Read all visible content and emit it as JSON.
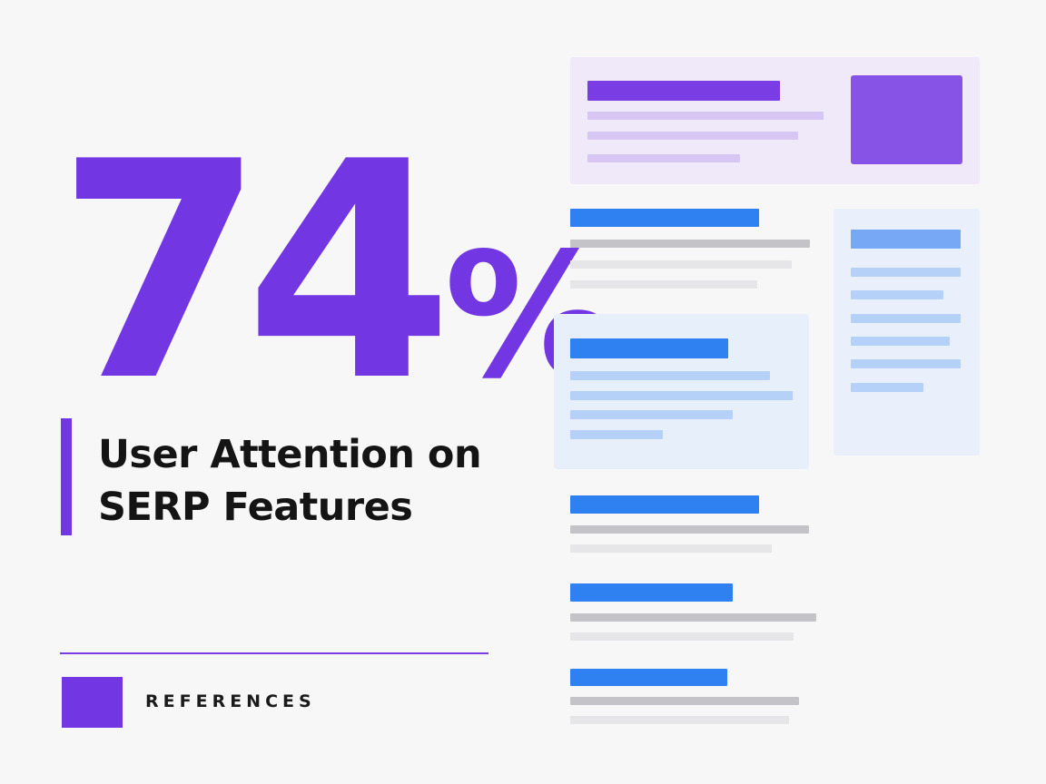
{
  "stat": {
    "number": "74",
    "unit": "%"
  },
  "headline": {
    "line1": "User Attention on",
    "line2": "SERP Features"
  },
  "footer": {
    "label": "REFERENCES"
  },
  "colors": {
    "accent": "#7336e3",
    "link_blue": "#2f80f0",
    "light_blue": "#b6d1f7",
    "gray": "#c4c4c8",
    "light_gray": "#e6e6e8",
    "featured_bg": "#efe9f9",
    "featured_title": "#7a3de4",
    "featured_line": "#d7c6f3"
  },
  "icons": {
    "thumbnail": "image-thumbnail"
  }
}
